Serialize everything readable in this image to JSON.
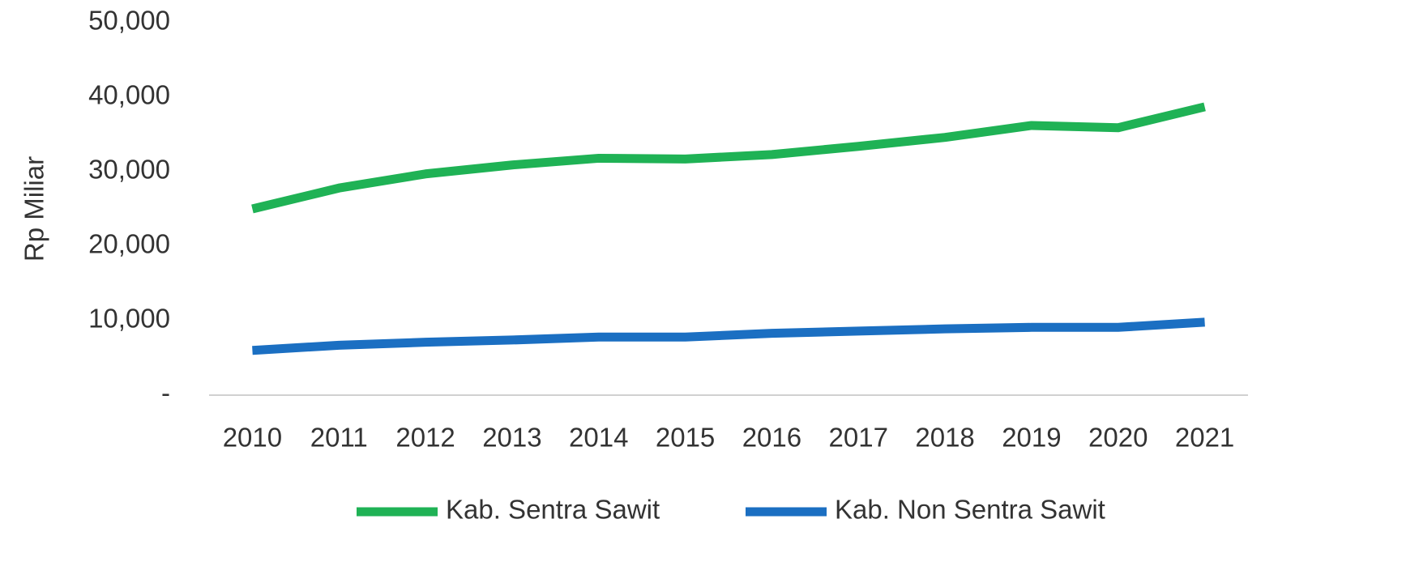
{
  "chart_data": {
    "type": "line",
    "y_label": "Rp Miliar",
    "categories": [
      "2010",
      "2011",
      "2012",
      "2013",
      "2014",
      "2015",
      "2016",
      "2017",
      "2018",
      "2019",
      "2020",
      "2021"
    ],
    "series": [
      {
        "name": "Kab. Sentra Sawit",
        "color": "#1fb255",
        "values": [
          25000,
          27800,
          29700,
          30900,
          31800,
          31700,
          32300,
          33400,
          34600,
          36200,
          35900,
          38700
        ]
      },
      {
        "name": "Kab. Non Sentra Sawit",
        "color": "#1b6fc2",
        "values": [
          6000,
          6700,
          7100,
          7400,
          7800,
          7800,
          8300,
          8600,
          8900,
          9100,
          9100,
          9800
        ]
      }
    ],
    "ylim": [
      0,
      50000
    ],
    "yticks": [
      {
        "value": 0,
        "label": "-"
      },
      {
        "value": 10000,
        "label": "10,000"
      },
      {
        "value": 20000,
        "label": "20,000"
      },
      {
        "value": 30000,
        "label": "30,000"
      },
      {
        "value": 40000,
        "label": "40,000"
      },
      {
        "value": 50000,
        "label": "50,000"
      }
    ],
    "grid": false,
    "legend": "bottom"
  }
}
